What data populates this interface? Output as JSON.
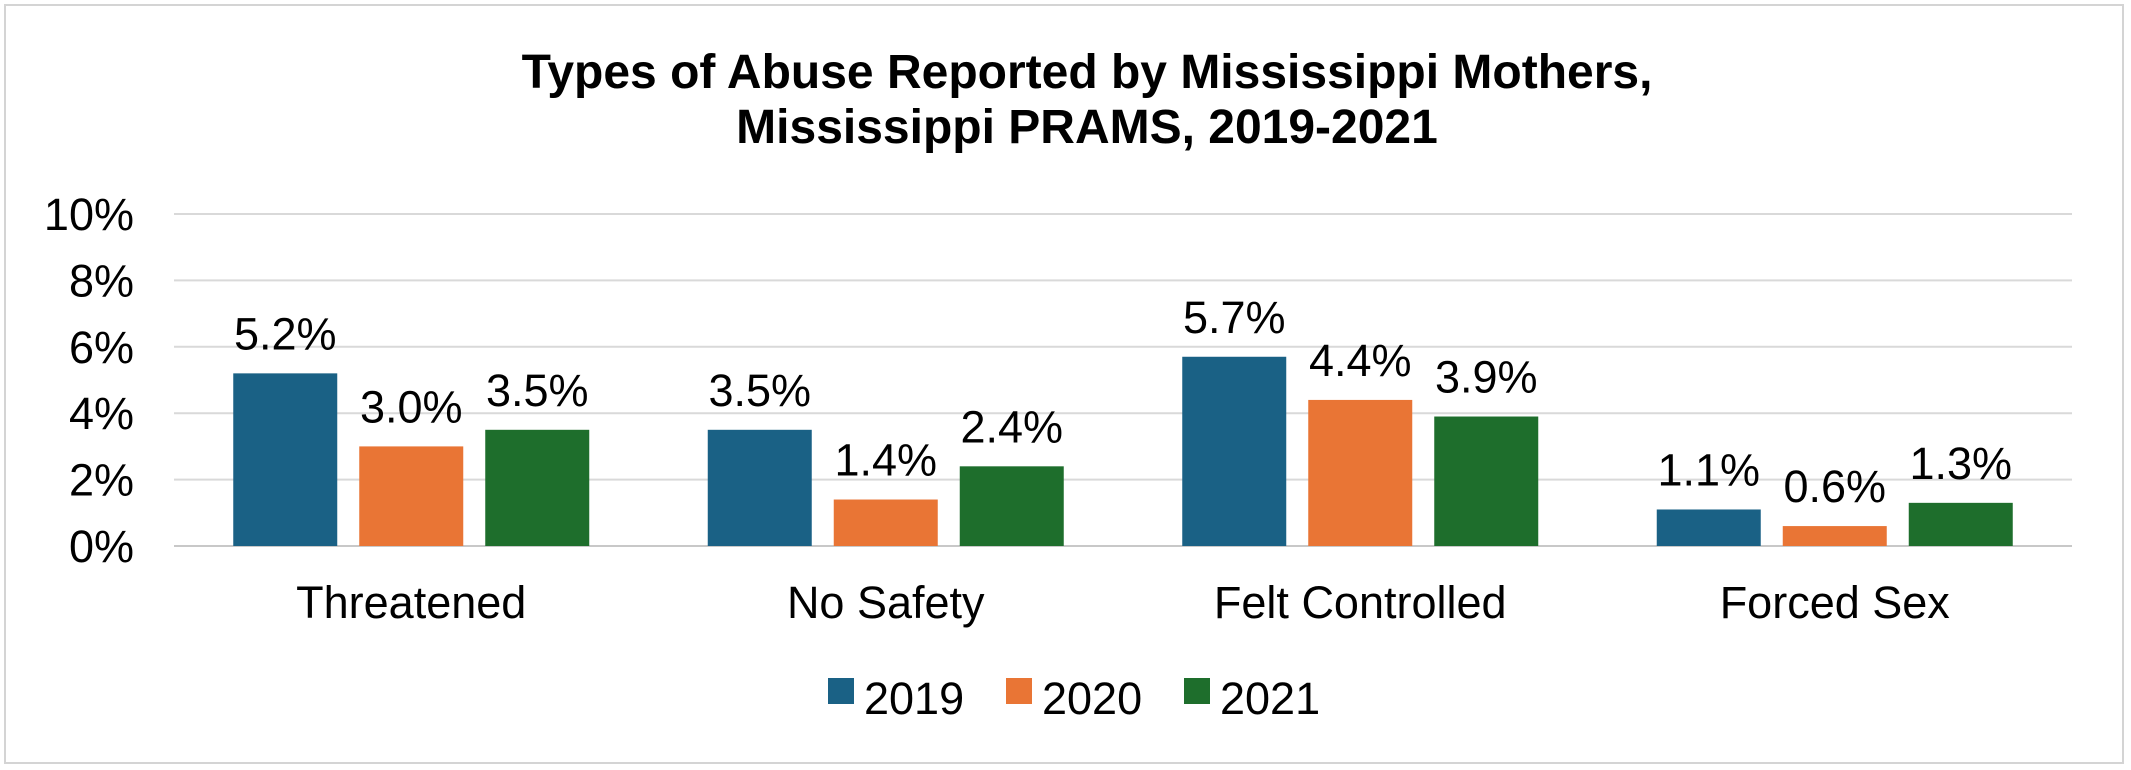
{
  "chart_data": {
    "type": "bar",
    "title_lines": [
      "Types of Abuse Reported by Mississippi Mothers,",
      "Mississippi PRAMS, 2019-2021"
    ],
    "xlabel": "",
    "ylabel": "",
    "categories": [
      "Threatened",
      "No Safety",
      "Felt Controlled",
      "Forced Sex"
    ],
    "series": [
      {
        "name": "2019",
        "color": "#1a6185",
        "values": [
          5.2,
          3.5,
          5.7,
          1.1
        ],
        "labels": [
          "5.2%",
          "3.5%",
          "5.7%",
          "1.1%"
        ]
      },
      {
        "name": "2020",
        "color": "#e97535",
        "values": [
          3.0,
          1.4,
          4.4,
          0.6
        ],
        "labels": [
          "3.0%",
          "1.4%",
          "4.4%",
          "0.6%"
        ]
      },
      {
        "name": "2021",
        "color": "#1e6e2c",
        "values": [
          3.5,
          2.4,
          3.9,
          1.3
        ],
        "labels": [
          "3.5%",
          "2.4%",
          "3.9%",
          "1.3%"
        ]
      }
    ],
    "ylim": [
      0,
      10
    ],
    "y_ticks": [
      0,
      2,
      4,
      6,
      8,
      10
    ],
    "y_tick_labels": [
      "0%",
      "2%",
      "4%",
      "6%",
      "8%",
      "10%"
    ],
    "grid": true,
    "legend_position": "bottom"
  }
}
